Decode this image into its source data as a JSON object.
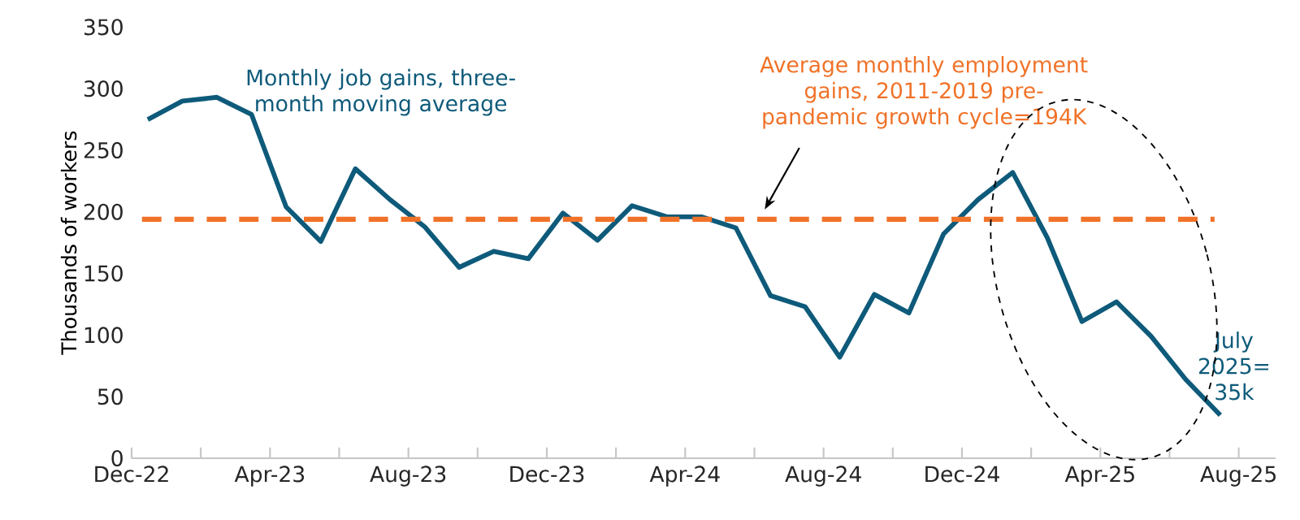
{
  "chart_data": {
    "type": "line",
    "ylabel": "Thousands of workers",
    "x": [
      "2022-12-15",
      "2023-01-15",
      "2023-02-15",
      "2023-03-15",
      "2023-04-15",
      "2023-05-15",
      "2023-06-15",
      "2023-07-15",
      "2023-08-15",
      "2023-09-15",
      "2023-10-15",
      "2023-11-15",
      "2023-12-15",
      "2024-01-15",
      "2024-02-15",
      "2024-03-15",
      "2024-04-15",
      "2024-05-15",
      "2024-06-15",
      "2024-07-15",
      "2024-08-15",
      "2024-09-15",
      "2024-10-15",
      "2024-11-15",
      "2024-12-15",
      "2025-01-15",
      "2025-02-15",
      "2025-03-15",
      "2025-04-15",
      "2025-05-15",
      "2025-06-15",
      "2025-07-15"
    ],
    "series": [
      {
        "name": "Monthly job gains, three-month moving average",
        "color": "#0e5a7a",
        "values": [
          275,
          290,
          293,
          279,
          204,
          176,
          235,
          210,
          188,
          155,
          168,
          162,
          199,
          177,
          205,
          196,
          196,
          187,
          132,
          123,
          82,
          133,
          118,
          182,
          210,
          232,
          179,
          111,
          127,
          99,
          64,
          35
        ]
      }
    ],
    "xlim": [
      "2022-12-01",
      "2025-09-03"
    ],
    "ylim": [
      0,
      350
    ],
    "xticks": [
      {
        "value": "2022-12-01",
        "label": "Dec-22"
      },
      {
        "value": "2023-04-01",
        "label": "Apr-23"
      },
      {
        "value": "2023-08-01",
        "label": "Aug-23"
      },
      {
        "value": "2023-12-01",
        "label": "Dec-23"
      },
      {
        "value": "2024-04-01",
        "label": "Apr-24"
      },
      {
        "value": "2024-08-01",
        "label": "Aug-24"
      },
      {
        "value": "2024-12-01",
        "label": "Dec-24"
      },
      {
        "value": "2025-04-01",
        "label": "Apr-25"
      },
      {
        "value": "2025-08-01",
        "label": "Aug-25"
      }
    ],
    "yticks": [
      0,
      50,
      100,
      150,
      200,
      250,
      300,
      350
    ],
    "ref_lines": [
      {
        "axis": "y",
        "value": 194,
        "label": "Average monthly employment gains, 2011-2019 pre-pandemic growth cycle=194K",
        "color": "#f07228",
        "line_style": "dashed"
      }
    ],
    "annotations": [
      {
        "text": "July 2025= 35k",
        "x": "2025-07-15",
        "y": 35
      }
    ],
    "grid": false,
    "legend": false,
    "marker": "none",
    "line_style": "solid"
  }
}
